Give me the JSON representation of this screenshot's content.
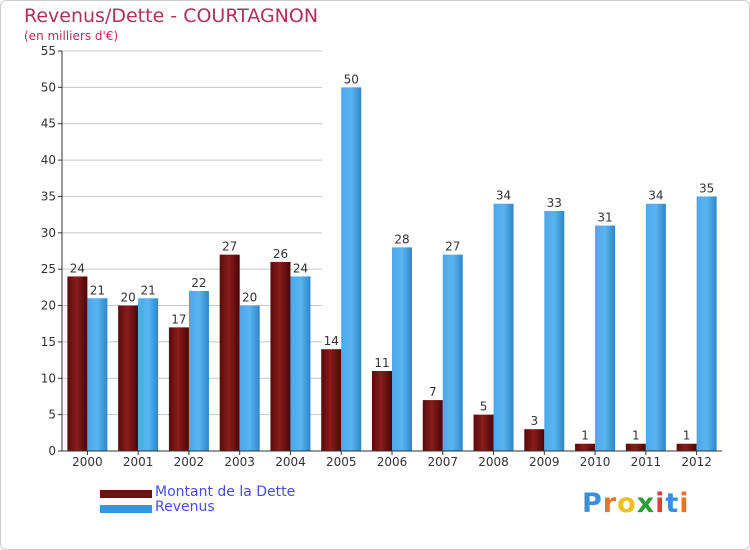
{
  "colors": {
    "title": "#b0305c",
    "dette": "#6e1010",
    "revenus": "#3a95d8",
    "axis": "#333333",
    "grid": "#c8c8c8",
    "legend_text": "#4a4af0"
  },
  "chart_data": {
    "type": "bar",
    "title": "Revenus/Dette - COURTAGNON",
    "subtitle": "(en milliers d'€)",
    "xlabel": "",
    "ylabel": "",
    "ylim": [
      0,
      55
    ],
    "yticks": [
      0,
      5,
      10,
      15,
      20,
      25,
      30,
      35,
      40,
      45,
      50,
      55
    ],
    "grid": "horizontal, left portion only",
    "legend_position": "bottom-left",
    "categories": [
      "2000",
      "2001",
      "2002",
      "2003",
      "2004",
      "2005",
      "2006",
      "2007",
      "2008",
      "2009",
      "2010",
      "2011",
      "2012"
    ],
    "series": [
      {
        "name": "Montant de la Dette",
        "key": "dette",
        "values": [
          24,
          20,
          17,
          27,
          26,
          14,
          11,
          7,
          5,
          3,
          1,
          1,
          1
        ]
      },
      {
        "name": "Revenus",
        "key": "revenus",
        "values": [
          21,
          21,
          22,
          20,
          24,
          50,
          28,
          27,
          34,
          33,
          31,
          34,
          35
        ]
      }
    ]
  },
  "legend": {
    "items": [
      {
        "label": "Montant de la Dette",
        "key": "dette"
      },
      {
        "label": "Revenus",
        "key": "revenus"
      }
    ]
  },
  "logo": {
    "text": "Proxiti"
  }
}
